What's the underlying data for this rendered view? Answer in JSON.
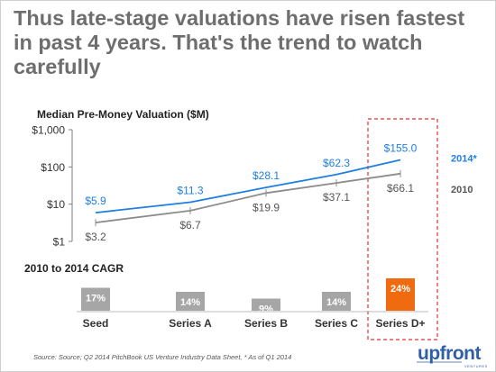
{
  "slide": {
    "title": "Thus late-stage valuations have risen fastest in past 4 years. That's the trend to watch carefully",
    "source": "Source: Source; Q2 2014 PitchBook US Venture Industry Data Sheet,   * As of Q1 2014",
    "logo": "upfront",
    "logo_sub": "VENTURES"
  },
  "colors": {
    "title": "#6e6e6e",
    "series_2014": "#1f7fe0",
    "series_2010": "#8c8c8c",
    "bar_default": "#a6a6a6",
    "bar_highlight": "#f06a0f",
    "highlight_box": "#e03030"
  },
  "chart_data": [
    {
      "type": "line",
      "title": "Median Pre-Money Valuation ($M)",
      "scale": "log",
      "ylim": [
        1,
        1000
      ],
      "yticks": [
        "$1",
        "$10",
        "$100",
        "$1,000"
      ],
      "categories": [
        "Seed",
        "Series A",
        "Series B",
        "Series C",
        "Series D+"
      ],
      "grid": false,
      "series": [
        {
          "name": "2014*",
          "values": [
            5.9,
            11.3,
            28.1,
            62.3,
            155.0
          ],
          "labels": [
            "$5.9",
            "$11.3",
            "$28.1",
            "$62.3",
            "$155.0"
          ]
        },
        {
          "name": "2010",
          "values": [
            3.2,
            6.7,
            19.9,
            37.1,
            66.1
          ],
          "labels": [
            "$3.2",
            "$6.7",
            "$19.9",
            "$37.1",
            "$66.1"
          ]
        }
      ]
    },
    {
      "type": "bar",
      "title": "2010 to 2014 CAGR",
      "categories": [
        "Seed",
        "Series A",
        "Series B",
        "Series C",
        "Series D+"
      ],
      "values": [
        17,
        14,
        9,
        14,
        24
      ],
      "labels": [
        "17%",
        "14%",
        "9%",
        "14%",
        "24%"
      ],
      "highlight": "Series D+"
    }
  ]
}
